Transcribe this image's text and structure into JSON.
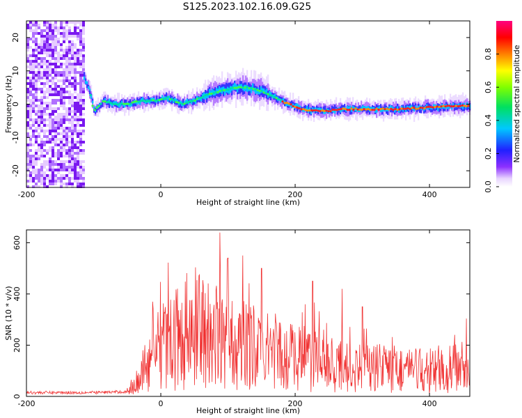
{
  "title": "S125.2023.102.16.09.G25",
  "colorbar_label": "Normalized spectral amplitude",
  "colorbar_ticks": [
    "0.0",
    "0.2",
    "0.4",
    "0.6",
    "0.8"
  ],
  "chart_data": [
    {
      "type": "heatmap",
      "xlabel": "Height of straight line (km)",
      "ylabel": "Frequency (Hz)",
      "xlim": [
        -200,
        460
      ],
      "ylim": [
        -25,
        25
      ],
      "xticks": [
        "-200",
        "0",
        "200",
        "400"
      ],
      "yticks": [
        "-20",
        "-10",
        "0",
        "10",
        "20"
      ],
      "zlim": [
        0,
        1
      ],
      "ridge_frequency": {
        "x": [
          -115,
          -105,
          -100,
          -95,
          -85,
          -70,
          -50,
          -30,
          -10,
          10,
          30,
          50,
          70,
          90,
          110,
          130,
          150,
          170,
          190,
          210,
          230,
          250,
          270,
          290,
          320,
          360,
          400,
          440,
          460
        ],
        "y": [
          8,
          3,
          -2,
          -1,
          1,
          0,
          0,
          1,
          1,
          2,
          0,
          1,
          3,
          4,
          5,
          5,
          4,
          2,
          0,
          -1.5,
          -2,
          -2,
          -1.5,
          -1.5,
          -1.5,
          -1.5,
          -1,
          -0.5,
          -0.5
        ]
      }
    },
    {
      "type": "line",
      "xlabel": "Height of straight line (km)",
      "ylabel": "SNR (10 * v/v)",
      "xlim": [
        -200,
        460
      ],
      "ylim": [
        0,
        650
      ],
      "xticks": [
        "-200",
        "0",
        "200",
        "400"
      ],
      "yticks": [
        "0",
        "200",
        "400",
        "600"
      ],
      "color": "#f03030",
      "envelope": {
        "x": [
          -200,
          -100,
          -50,
          -40,
          -20,
          0,
          20,
          40,
          60,
          80,
          100,
          120,
          140,
          160,
          180,
          200,
          220,
          240,
          260,
          280,
          300,
          340,
          380,
          420,
          460
        ],
        "y": [
          15,
          15,
          18,
          50,
          120,
          180,
          220,
          250,
          260,
          240,
          210,
          200,
          190,
          170,
          160,
          150,
          160,
          140,
          120,
          110,
          110,
          110,
          100,
          100,
          120
        ]
      },
      "peaks": [
        {
          "x": -12,
          "y": 370
        },
        {
          "x": 88,
          "y": 640
        },
        {
          "x": 100,
          "y": 540
        },
        {
          "x": 122,
          "y": 550
        },
        {
          "x": 150,
          "y": 500
        },
        {
          "x": 226,
          "y": 450
        },
        {
          "x": 270,
          "y": 420
        },
        {
          "x": 300,
          "y": 350
        }
      ]
    }
  ]
}
